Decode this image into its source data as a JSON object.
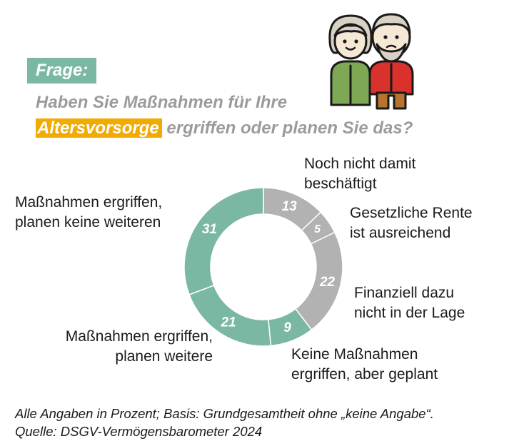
{
  "header": {
    "tag": "Frage:",
    "question_part1": "Haben Sie Maßnahmen für Ihre",
    "question_highlight": "Altersvorsorge",
    "question_part2": "ergriffen oder planen Sie das?"
  },
  "chart_data": {
    "type": "pie",
    "variant": "donut",
    "unit": "%",
    "categories": [
      "Noch nicht damit beschäftigt",
      "Gesetzliche Rente ist ausreichend",
      "Finanziell dazu nicht in der Lage",
      "Keine Maßnahmen ergriffen, aber geplant",
      "Maßnahmen ergriffen, planen weitere",
      "Maßnahmen ergriffen, planen keine weiteren"
    ],
    "values": [
      13,
      5,
      22,
      9,
      21,
      31
    ],
    "colors": [
      "#b2b2b2",
      "#b2b2b2",
      "#b2b2b2",
      "#7ab8a4",
      "#7ab8a4",
      "#7ab8a4"
    ],
    "labels": [
      {
        "line1": "Noch nicht damit",
        "line2": "beschäftigt"
      },
      {
        "line1": "Gesetzliche Rente",
        "line2": "ist ausreichend"
      },
      {
        "line1": "Finanziell dazu",
        "line2": "nicht in der Lage"
      },
      {
        "line1": "Keine Maßnahmen",
        "line2": "ergriffen, aber geplant"
      },
      {
        "line1": "Maßnahmen ergriffen,",
        "line2": "planen weitere"
      },
      {
        "line1": "Maßnahmen ergriffen,",
        "line2": "planen keine weiteren"
      }
    ],
    "direction": "clockwise",
    "start": "top"
  },
  "footnote": {
    "line1": "Alle Angaben in Prozent; Basis: Grundgesamtheit ohne „keine Angabe“.",
    "line2": "Quelle: DSGV-Vermögensbarometer 2024"
  },
  "illustration": {
    "icon": "elderly-couple-icon",
    "colors": {
      "green": "#7fa855",
      "red": "#d9312b",
      "brown": "#b8742f",
      "skin": "#f5e8d4",
      "outline": "#1a1a1a"
    }
  }
}
